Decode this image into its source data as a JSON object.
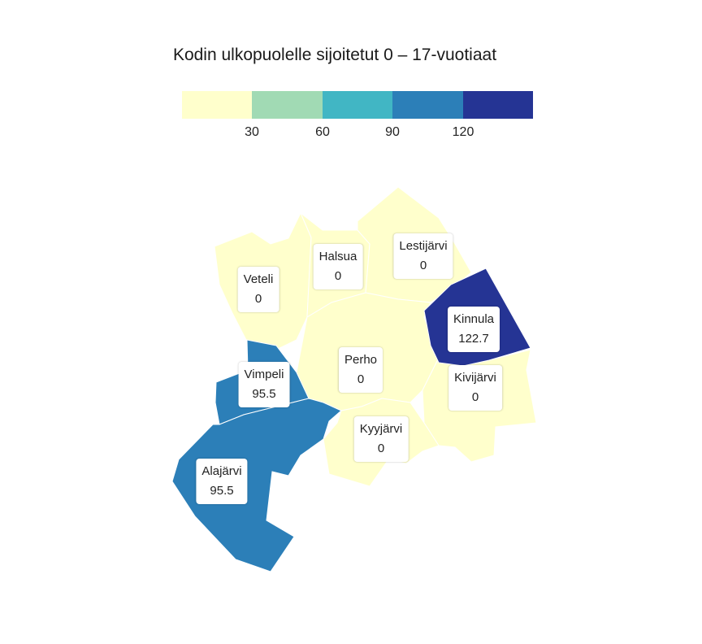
{
  "title": "Kodin ulkopuolelle sijoitetut 0 – 17-vuotiaat",
  "legend": {
    "colors": [
      "#ffffcc",
      "#a1dab4",
      "#41b6c4",
      "#2c7fb8",
      "#253494"
    ],
    "ticks": [
      "30",
      "60",
      "90",
      "120"
    ]
  },
  "municipalities": [
    {
      "name": "Veteli",
      "value": "0",
      "color": "#ffffcc"
    },
    {
      "name": "Halsua",
      "value": "0",
      "color": "#ffffcc"
    },
    {
      "name": "Lestijärvi",
      "value": "0",
      "color": "#ffffcc"
    },
    {
      "name": "Kinnula",
      "value": "122.7",
      "color": "#253494"
    },
    {
      "name": "Perho",
      "value": "0",
      "color": "#ffffcc"
    },
    {
      "name": "Kivijärvi",
      "value": "0",
      "color": "#ffffcc"
    },
    {
      "name": "Vimpeli",
      "value": "95.5",
      "color": "#2c7fb8"
    },
    {
      "name": "Kyyjärvi",
      "value": "0",
      "color": "#ffffcc"
    },
    {
      "name": "Alajärvi",
      "value": "95.5",
      "color": "#2c7fb8"
    }
  ]
}
